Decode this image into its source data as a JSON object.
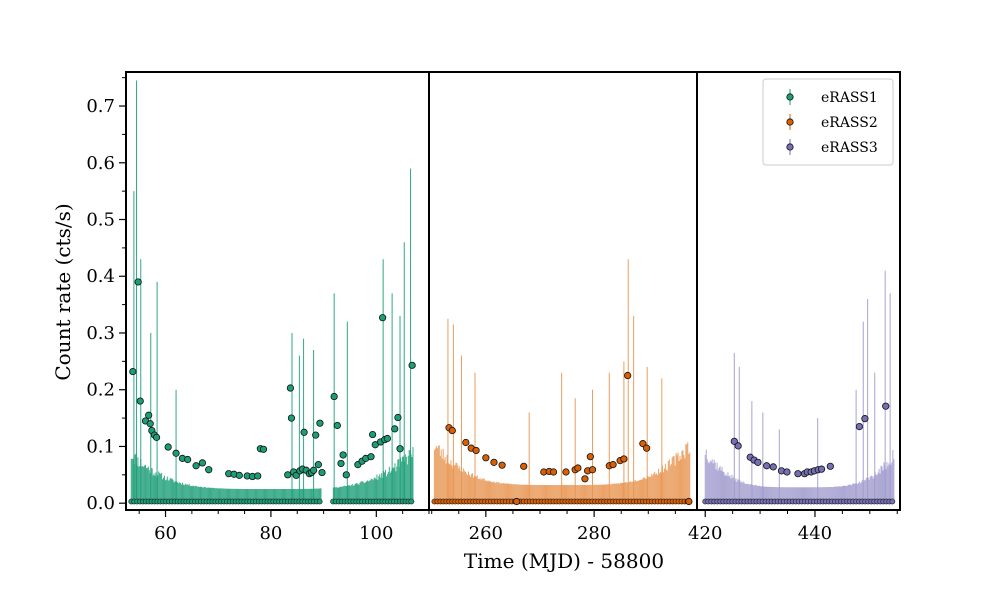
{
  "chart_data": {
    "type": "scatter",
    "xlabel": "Time (MJD) - 58800",
    "ylabel": "Count rate (cts/s)",
    "ylim": [
      -0.012,
      0.76
    ],
    "y_ticks": [
      "0.0",
      "0.1",
      "0.2",
      "0.3",
      "0.4",
      "0.5",
      "0.6",
      "0.7"
    ],
    "legend_position": "top-right",
    "legend": [
      {
        "label": "eRASS1",
        "color": "#1b9e77"
      },
      {
        "label": "eRASS2",
        "color": "#d95f02"
      },
      {
        "label": "eRASS3",
        "color": "#7570b3"
      }
    ],
    "panels": [
      {
        "name": "eRASS1",
        "color": "#1b9e77",
        "err_color": "#1b9e77",
        "xlim": [
          52.5,
          110.0
        ],
        "x_ticks": [
          60,
          80,
          100
        ],
        "t_range": [
          53.5,
          107.0
        ],
        "noise_seed": 11,
        "err_band": {
          "center": 80.0,
          "half_width": 26.8,
          "floor": 0.025,
          "top": 0.105
        },
        "tall_errors": [
          [
            54.5,
            0.745
          ],
          [
            54.0,
            0.55
          ],
          [
            55.3,
            0.43
          ],
          [
            58.4,
            0.39
          ],
          [
            57.2,
            0.3
          ],
          [
            62.0,
            0.2
          ],
          [
            84.0,
            0.3
          ],
          [
            85.4,
            0.26
          ],
          [
            86.2,
            0.29
          ],
          [
            88.1,
            0.27
          ],
          [
            92.0,
            0.37
          ],
          [
            94.5,
            0.32
          ],
          [
            101.3,
            0.43
          ],
          [
            103.0,
            0.37
          ],
          [
            104.5,
            0.33
          ],
          [
            105.3,
            0.46
          ],
          [
            106.5,
            0.59
          ]
        ],
        "points": [
          [
            53.8,
            0.232
          ],
          [
            54.8,
            0.39
          ],
          [
            55.2,
            0.18
          ],
          [
            56.2,
            0.145
          ],
          [
            56.8,
            0.155
          ],
          [
            57.1,
            0.14
          ],
          [
            57.4,
            0.128
          ],
          [
            57.9,
            0.12
          ],
          [
            58.3,
            0.116
          ],
          [
            60.5,
            0.099
          ],
          [
            62.0,
            0.088
          ],
          [
            63.2,
            0.079
          ],
          [
            64.2,
            0.077
          ],
          [
            65.8,
            0.066
          ],
          [
            67.0,
            0.071
          ],
          [
            68.2,
            0.059
          ],
          [
            72.0,
            0.052
          ],
          [
            73.0,
            0.051
          ],
          [
            74.0,
            0.049
          ],
          [
            75.5,
            0.048
          ],
          [
            76.5,
            0.047
          ],
          [
            77.5,
            0.048
          ],
          [
            78.0,
            0.096
          ],
          [
            78.6,
            0.095
          ],
          [
            83.2,
            0.05
          ],
          [
            83.7,
            0.203
          ],
          [
            83.9,
            0.15
          ],
          [
            84.3,
            0.055
          ],
          [
            84.8,
            0.049
          ],
          [
            85.5,
            0.057
          ],
          [
            86.0,
            0.06
          ],
          [
            86.3,
            0.125
          ],
          [
            86.7,
            0.058
          ],
          [
            87.3,
            0.052
          ],
          [
            87.7,
            0.054
          ],
          [
            88.1,
            0.058
          ],
          [
            88.5,
            0.12
          ],
          [
            89.0,
            0.068
          ],
          [
            89.3,
            0.141
          ],
          [
            89.7,
            0.054
          ],
          [
            92.0,
            0.188
          ],
          [
            92.6,
            0.137
          ],
          [
            93.3,
            0.07
          ],
          [
            93.7,
            0.085
          ],
          [
            94.3,
            0.05
          ],
          [
            96.5,
            0.068
          ],
          [
            97.3,
            0.074
          ],
          [
            98.0,
            0.079
          ],
          [
            99.0,
            0.082
          ],
          [
            99.3,
            0.121
          ],
          [
            99.8,
            0.103
          ],
          [
            100.8,
            0.108
          ],
          [
            101.2,
            0.327
          ],
          [
            101.6,
            0.112
          ],
          [
            102.1,
            0.114
          ],
          [
            103.5,
            0.131
          ],
          [
            104.1,
            0.151
          ],
          [
            104.5,
            0.096
          ],
          [
            106.8,
            0.243
          ]
        ],
        "zero_ranges": [
          [
            53.5,
            89.6
          ],
          [
            91.8,
            107.0
          ]
        ]
      },
      {
        "name": "eRASS2",
        "color": "#d95f02",
        "err_color": "#e8934e",
        "xlim": [
          249.5,
          299.0
        ],
        "x_ticks": [
          260,
          280
        ],
        "t_range": [
          250.5,
          297.8
        ],
        "noise_seed": 23,
        "err_band": {
          "center": 274.0,
          "half_width": 23.8,
          "floor": 0.032,
          "top": 0.125
        },
        "tall_errors": [
          [
            253.0,
            0.325
          ],
          [
            254.0,
            0.315
          ],
          [
            255.5,
            0.26
          ],
          [
            258.0,
            0.23
          ],
          [
            268.0,
            0.16
          ],
          [
            274.0,
            0.23
          ],
          [
            276.5,
            0.185
          ],
          [
            279.7,
            0.2
          ],
          [
            282.8,
            0.23
          ],
          [
            285.5,
            0.25
          ],
          [
            286.3,
            0.43
          ],
          [
            287.3,
            0.33
          ],
          [
            289.8,
            0.24
          ],
          [
            292.5,
            0.22
          ]
        ],
        "points": [
          [
            253.2,
            0.133
          ],
          [
            253.8,
            0.128
          ],
          [
            256.3,
            0.107
          ],
          [
            257.3,
            0.097
          ],
          [
            258.2,
            0.093
          ],
          [
            260.0,
            0.08
          ],
          [
            261.5,
            0.072
          ],
          [
            263.0,
            0.067
          ],
          [
            265.7,
            0.003
          ],
          [
            267.0,
            0.065
          ],
          [
            270.7,
            0.055
          ],
          [
            271.7,
            0.056
          ],
          [
            272.5,
            0.055
          ],
          [
            274.8,
            0.055
          ],
          [
            276.5,
            0.059
          ],
          [
            277.0,
            0.062
          ],
          [
            278.3,
            0.043
          ],
          [
            278.8,
            0.057
          ],
          [
            279.3,
            0.082
          ],
          [
            279.7,
            0.059
          ],
          [
            282.8,
            0.066
          ],
          [
            283.5,
            0.068
          ],
          [
            284.8,
            0.075
          ],
          [
            285.5,
            0.078
          ],
          [
            286.2,
            0.225
          ],
          [
            289.0,
            0.105
          ],
          [
            289.7,
            0.097
          ],
          [
            297.5,
            0.003
          ]
        ],
        "zero_ranges": [
          [
            250.5,
            297.8
          ]
        ]
      },
      {
        "name": "eRASS3",
        "color": "#7570b3",
        "err_color": "#9e99cc",
        "xlim": [
          418.5,
          455.5
        ],
        "x_ticks": [
          420,
          440
        ],
        "t_range": [
          420.0,
          454.5
        ],
        "noise_seed": 37,
        "err_band": {
          "center": 437.5,
          "half_width": 17.8,
          "floor": 0.028,
          "top": 0.115
        },
        "tall_errors": [
          [
            425.3,
            0.265
          ],
          [
            426.2,
            0.24
          ],
          [
            428.5,
            0.18
          ],
          [
            430.5,
            0.16
          ],
          [
            433.5,
            0.13
          ],
          [
            440.5,
            0.15
          ],
          [
            447.5,
            0.2
          ],
          [
            448.8,
            0.32
          ],
          [
            449.6,
            0.36
          ],
          [
            450.9,
            0.23
          ],
          [
            452.8,
            0.41
          ],
          [
            453.7,
            0.37
          ]
        ],
        "points": [
          [
            425.3,
            0.109
          ],
          [
            426.0,
            0.101
          ],
          [
            428.2,
            0.081
          ],
          [
            428.9,
            0.076
          ],
          [
            429.6,
            0.072
          ],
          [
            431.2,
            0.066
          ],
          [
            432.4,
            0.064
          ],
          [
            433.9,
            0.057
          ],
          [
            434.9,
            0.055
          ],
          [
            436.9,
            0.052
          ],
          [
            438.1,
            0.052
          ],
          [
            438.6,
            0.055
          ],
          [
            439.3,
            0.055
          ],
          [
            439.9,
            0.057
          ],
          [
            440.6,
            0.059
          ],
          [
            441.2,
            0.06
          ],
          [
            442.8,
            0.065
          ],
          [
            448.1,
            0.135
          ],
          [
            449.1,
            0.149
          ],
          [
            452.9,
            0.171
          ]
        ],
        "zero_ranges": [
          [
            420.0,
            454.5
          ]
        ]
      }
    ]
  }
}
